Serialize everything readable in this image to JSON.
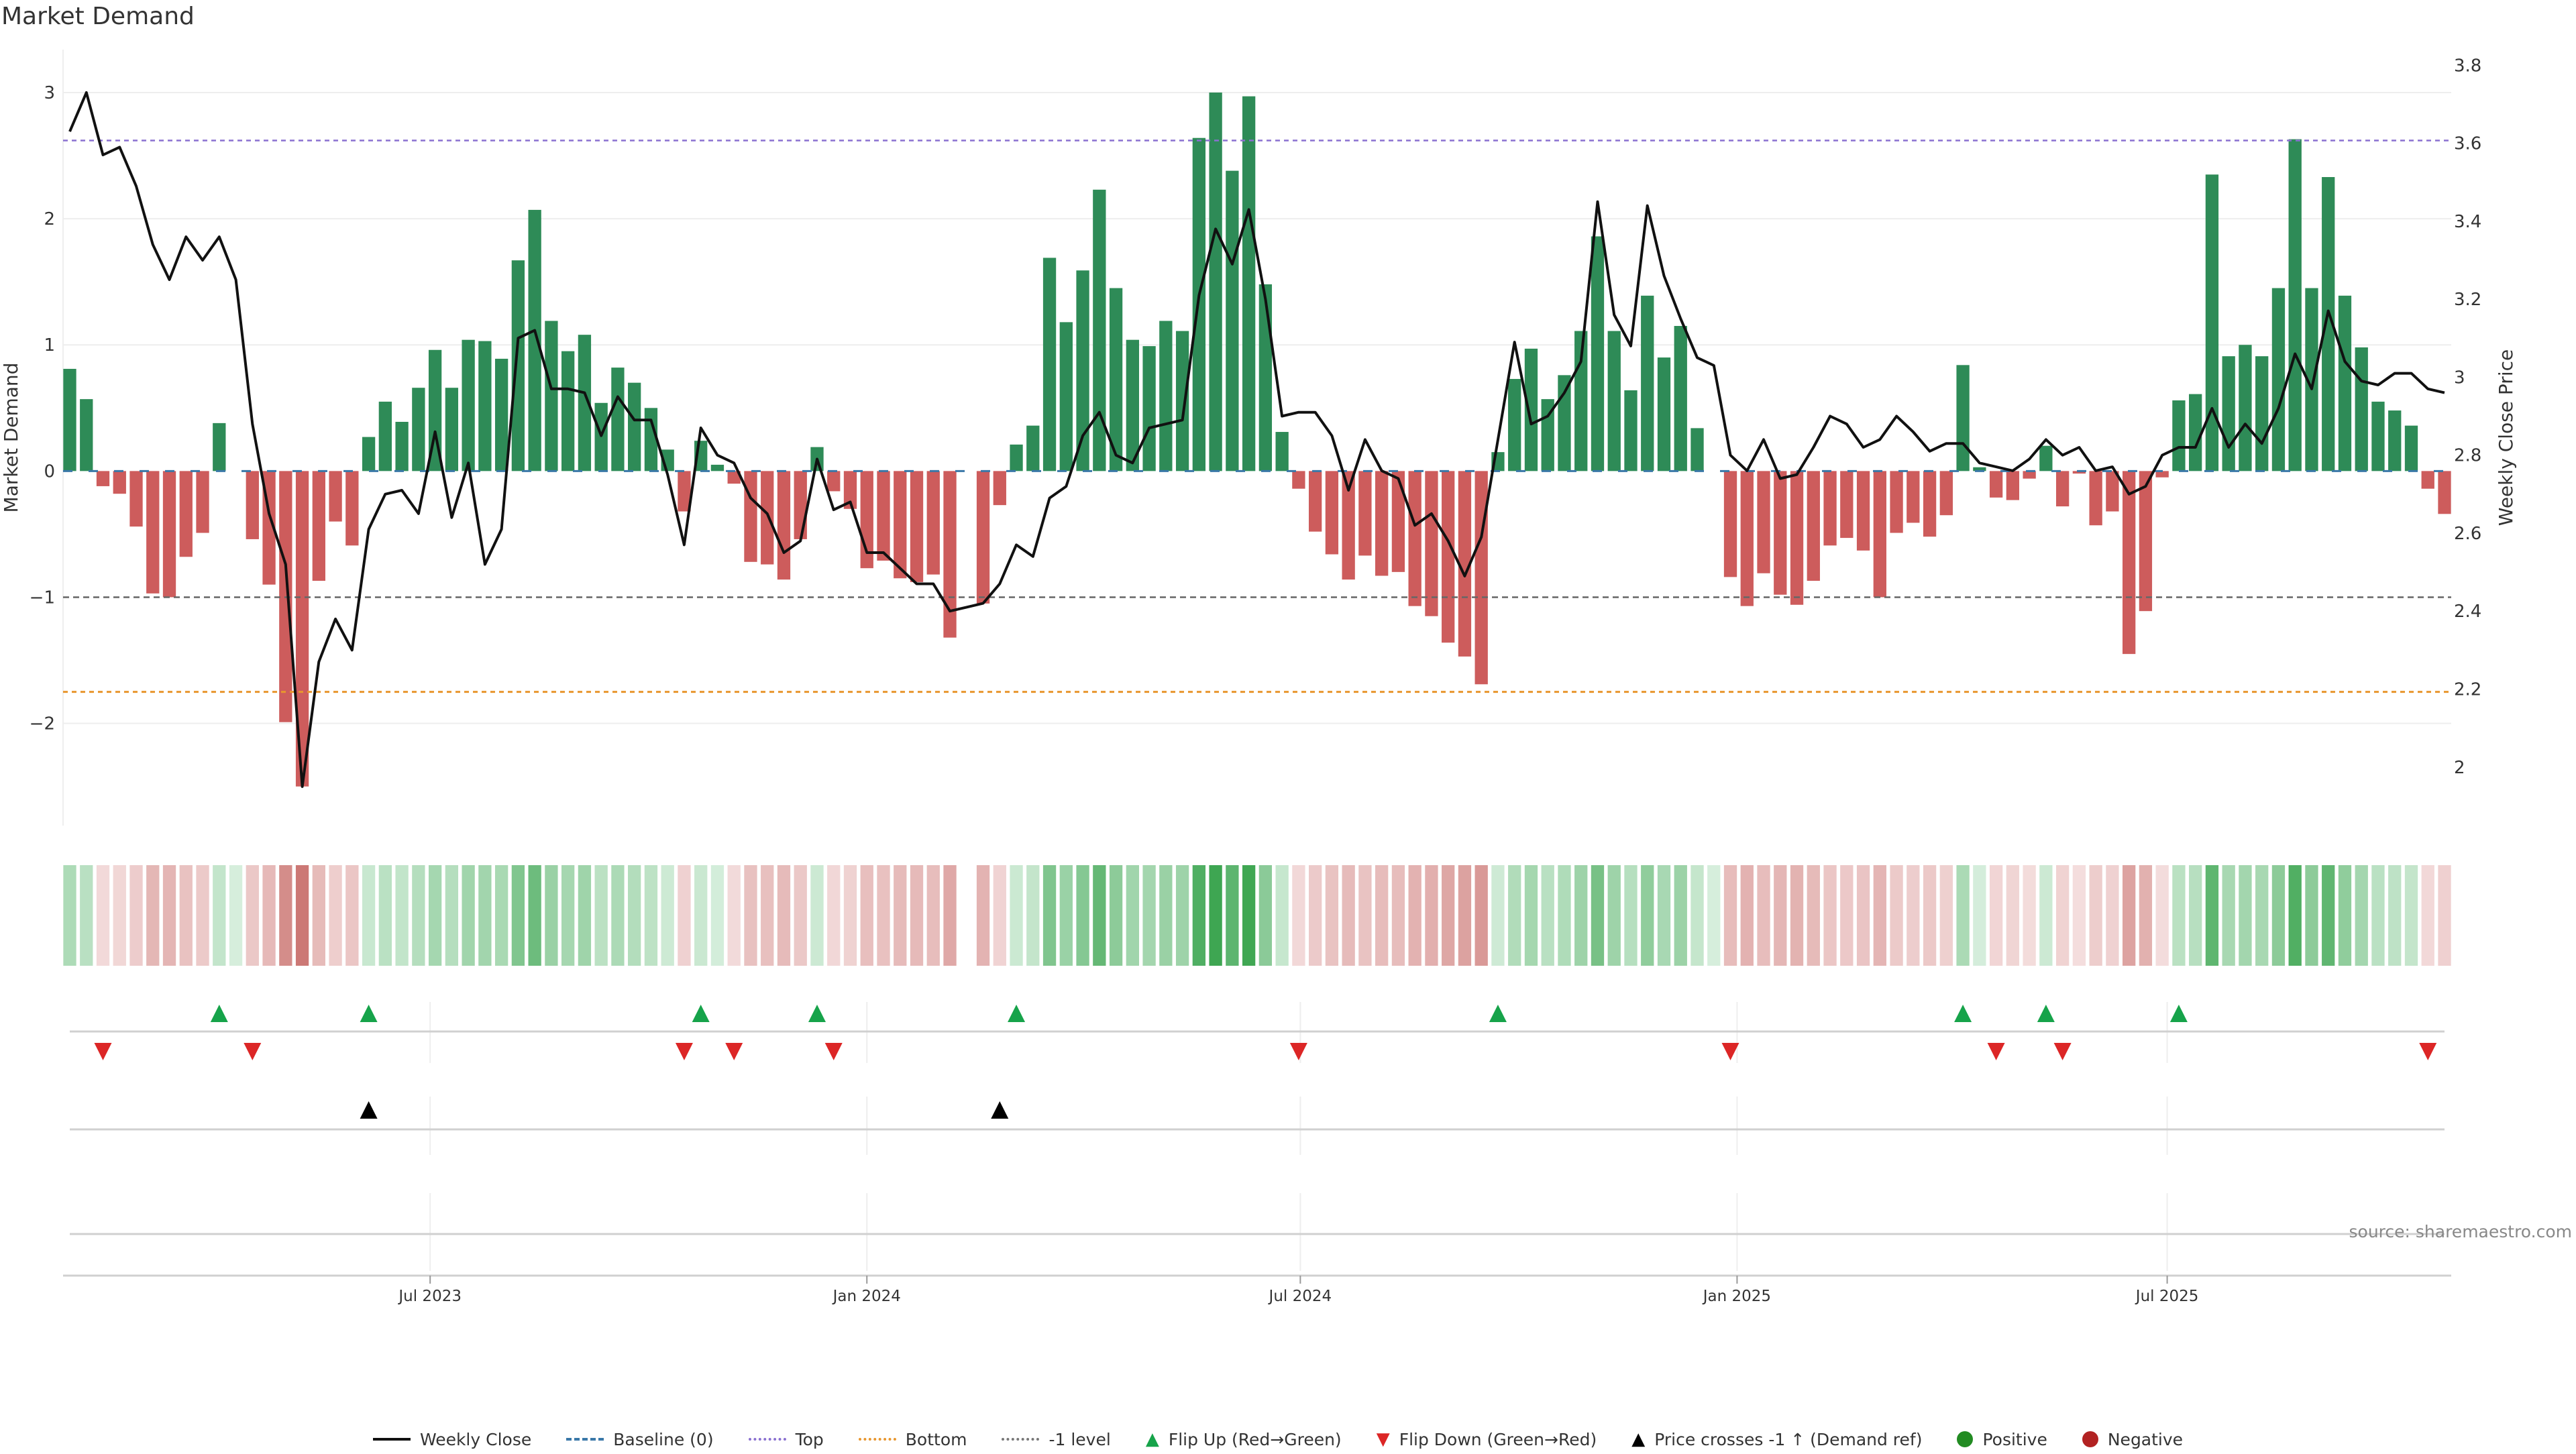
{
  "chart_data": {
    "type": "bar",
    "title": "Market Demand",
    "source": "source: sharemaestro.com",
    "ylabel": "Market Demand",
    "y2label": "Weekly Close Price",
    "ylim": [
      -2.81,
      3.34
    ],
    "y2lim": [
      1.85,
      3.84
    ],
    "yticks": [
      -2,
      -1,
      0,
      1,
      2,
      3
    ],
    "ytick_labels": [
      "−2",
      "−1",
      "0",
      "1",
      "2",
      "3"
    ],
    "y2ticks": [
      2,
      2.2,
      2.4,
      2.6,
      2.8,
      3,
      3.2,
      3.4,
      3.6,
      3.8
    ],
    "y2tick_labels": [
      "2",
      "2.2",
      "2.4",
      "2.6",
      "2.8",
      "3",
      "3.2",
      "3.4",
      "3.6",
      "3.8"
    ],
    "xticks": [
      {
        "index": 21.7,
        "label": "Jul 2023"
      },
      {
        "index": 48.0,
        "label": "Jan 2024"
      },
      {
        "index": 74.1,
        "label": "Jul 2024"
      },
      {
        "index": 100.4,
        "label": "Jan 2025"
      },
      {
        "index": 126.3,
        "label": "Jul 2025"
      }
    ],
    "levels": {
      "top": 2.62,
      "bottom": -1.75,
      "minus_one": -1,
      "baseline": 0
    },
    "demand": [
      0.81,
      0.57,
      -0.12,
      -0.18,
      -0.44,
      -0.97,
      -1.0,
      -0.68,
      -0.49,
      0.38,
      0,
      -0.54,
      -0.9,
      -1.99,
      -2.5,
      -0.87,
      -0.4,
      -0.59,
      0.27,
      0.55,
      0.39,
      0.66,
      0.96,
      0.66,
      1.04,
      1.03,
      0.89,
      1.67,
      2.07,
      1.19,
      0.95,
      1.08,
      0.54,
      0.82,
      0.7,
      0.5,
      0.17,
      -0.32,
      0.24,
      0.05,
      -0.1,
      -0.72,
      -0.74,
      -0.86,
      -0.54,
      0.19,
      -0.16,
      -0.3,
      -0.77,
      -0.71,
      -0.85,
      -0.88,
      -0.82,
      -1.32,
      null,
      -1.05,
      -0.27,
      0.21,
      0.36,
      1.69,
      1.18,
      1.59,
      2.23,
      1.45,
      1.04,
      0.99,
      1.19,
      1.11,
      2.64,
      3.0,
      2.38,
      2.97,
      1.48,
      0.31,
      -0.14,
      -0.48,
      -0.66,
      -0.86,
      -0.67,
      -0.83,
      -0.8,
      -1.07,
      -1.15,
      -1.36,
      -1.47,
      -1.69,
      0.15,
      0.73,
      0.97,
      0.57,
      0.76,
      1.11,
      1.86,
      1.11,
      0.64,
      1.39,
      0.9,
      1.15,
      0.34,
      0,
      -0.84,
      -1.07,
      -0.81,
      -0.98,
      -1.06,
      -0.87,
      -0.59,
      -0.53,
      -0.63,
      -1.0,
      -0.49,
      -0.41,
      -0.52,
      -0.35,
      0.84,
      0.03,
      -0.21,
      -0.23,
      -0.06,
      0.2,
      -0.28,
      -0.02,
      -0.43,
      -0.32,
      -1.45,
      -1.11,
      -0.05,
      0.56,
      0.61,
      2.35,
      0.91,
      1.0,
      0.91,
      1.45,
      2.63,
      1.45,
      2.33,
      1.39,
      0.98,
      0.55,
      0.48,
      0.36,
      -0.14,
      -0.34
    ],
    "weekly_close": [
      3.63,
      3.73,
      3.57,
      3.59,
      3.49,
      3.34,
      3.25,
      3.36,
      3.3,
      3.36,
      3.25,
      2.88,
      2.65,
      2.52,
      1.95,
      2.27,
      2.38,
      2.3,
      2.61,
      2.7,
      2.71,
      2.65,
      2.86,
      2.64,
      2.78,
      2.52,
      2.61,
      3.1,
      3.12,
      2.97,
      2.97,
      2.96,
      2.85,
      2.95,
      2.89,
      2.89,
      2.75,
      2.57,
      2.87,
      2.8,
      2.78,
      2.69,
      2.65,
      2.55,
      2.58,
      2.79,
      2.66,
      2.68,
      2.55,
      2.55,
      2.51,
      2.47,
      2.47,
      2.4,
      2.41,
      2.42,
      2.47,
      2.57,
      2.54,
      2.69,
      2.72,
      2.85,
      2.91,
      2.8,
      2.78,
      2.87,
      2.88,
      2.89,
      3.21,
      3.38,
      3.29,
      3.43,
      3.2,
      2.9,
      2.91,
      2.91,
      2.85,
      2.71,
      2.84,
      2.76,
      2.74,
      2.62,
      2.65,
      2.58,
      2.49,
      2.59,
      2.84,
      3.09,
      2.88,
      2.9,
      2.96,
      3.04,
      3.45,
      3.16,
      3.08,
      3.44,
      3.26,
      3.15,
      3.05,
      3.03,
      2.8,
      2.76,
      2.84,
      2.74,
      2.75,
      2.82,
      2.9,
      2.88,
      2.82,
      2.84,
      2.9,
      2.86,
      2.81,
      2.83,
      2.83,
      2.78,
      2.77,
      2.76,
      2.79,
      2.84,
      2.8,
      2.82,
      2.76,
      2.77,
      2.7,
      2.72,
      2.8,
      2.82,
      2.82,
      2.92,
      2.82,
      2.88,
      2.83,
      2.92,
      3.06,
      2.97,
      3.17,
      3.04,
      2.99,
      2.98,
      3.01,
      3.01,
      2.97,
      2.96
    ],
    "flip_up_indices": [
      9,
      18,
      38,
      45,
      57,
      86,
      114,
      119,
      127
    ],
    "flip_down_indices": [
      2,
      11,
      37,
      40,
      46,
      74,
      100,
      116,
      120,
      142
    ],
    "price_cross_indices": [
      18,
      56
    ],
    "legend": [
      {
        "label": "Weekly Close",
        "kind": "line",
        "color": "#111111"
      },
      {
        "label": "Baseline (0)",
        "kind": "dash",
        "color": "#3a78a8"
      },
      {
        "label": "Top",
        "kind": "dot",
        "color": "#8a70d0"
      },
      {
        "label": "Bottom",
        "kind": "dot",
        "color": "#e8962e"
      },
      {
        "label": "-1 level",
        "kind": "dot",
        "color": "#777777"
      },
      {
        "label": "Flip Up (Red→Green)",
        "kind": "up",
        "color": "#16a34a"
      },
      {
        "label": "Flip Down (Green→Red)",
        "kind": "down",
        "color": "#dc2626"
      },
      {
        "label": "Price crosses -1 ↑ (Demand ref)",
        "kind": "up",
        "color": "#000000"
      },
      {
        "label": "Positive",
        "kind": "circle",
        "color": "#228b22"
      },
      {
        "label": "Negative",
        "kind": "circle",
        "color": "#b22222"
      }
    ],
    "colors": {
      "positive_bar": "#2e8b57",
      "negative_bar": "#cd5c5c",
      "line": "#111111"
    }
  }
}
